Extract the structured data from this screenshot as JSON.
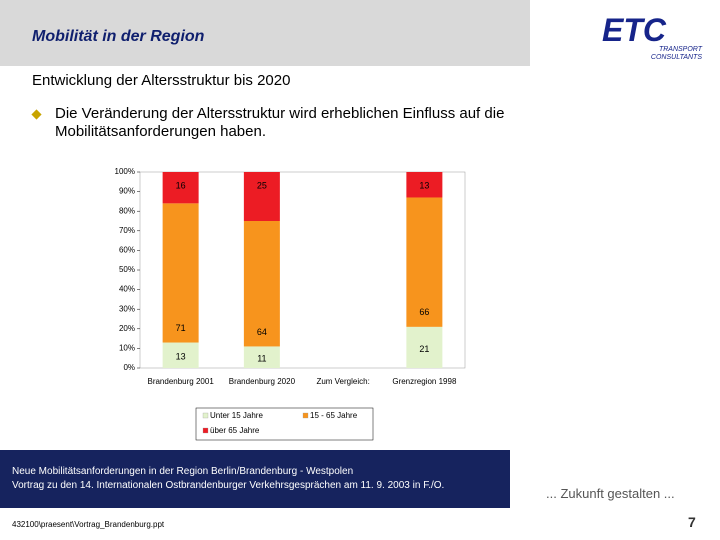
{
  "header": {
    "title": "Mobilität in der Region",
    "logo": {
      "name": "ETC",
      "line1": "TRANSPORT",
      "line2": "CONSULTANTS"
    }
  },
  "subtitle": "Entwicklung der Altersstruktur bis 2020",
  "bullet": "Die Veränderung der Altersstruktur wird erheblichen Einfluss auf die Mobilitätsanforderungen haben.",
  "chart_data": {
    "type": "stacked_bar",
    "categories": [
      "Brandenburg 2001",
      "Brandenburg 2020",
      "Zum Vergleich:",
      "Grenzregion 1998"
    ],
    "series": [
      {
        "name": "Unter 15 Jahre",
        "color": "#e2f2cc",
        "values": [
          13,
          11,
          null,
          21
        ]
      },
      {
        "name": "15 - 65 Jahre",
        "color": "#f7941d",
        "values": [
          71,
          64,
          null,
          66
        ]
      },
      {
        "name": "über 65 Jahre",
        "color": "#ec1c24",
        "values": [
          16,
          25,
          null,
          13
        ]
      }
    ],
    "ylim": [
      0,
      100
    ],
    "yticks": [
      {
        "value": 0,
        "label": "0%"
      },
      {
        "value": 10,
        "label": "10%"
      },
      {
        "value": 20,
        "label": "20%"
      },
      {
        "value": 30,
        "label": "30%"
      },
      {
        "value": 40,
        "label": "40%"
      },
      {
        "value": 50,
        "label": "50%"
      },
      {
        "value": 60,
        "label": "60%"
      },
      {
        "value": 70,
        "label": "70%"
      },
      {
        "value": 80,
        "label": "80%"
      },
      {
        "value": 90,
        "label": "90%"
      },
      {
        "value": 100,
        "label": "100%"
      }
    ]
  },
  "footer": {
    "line1": "Neue Mobilitätsanforderungen in der Region Berlin/Brandenburg - Westpolen",
    "line2": "Vortrag zu den 14. Internationalen Ostbrandenburger Verkehrsgesprächen am 11. 9. 2003 in F./O.",
    "motto": "... Zukunft gestalten ...",
    "file": "432100\\praesent\\Vortrag_Brandenburg.ppt",
    "page": "7"
  }
}
